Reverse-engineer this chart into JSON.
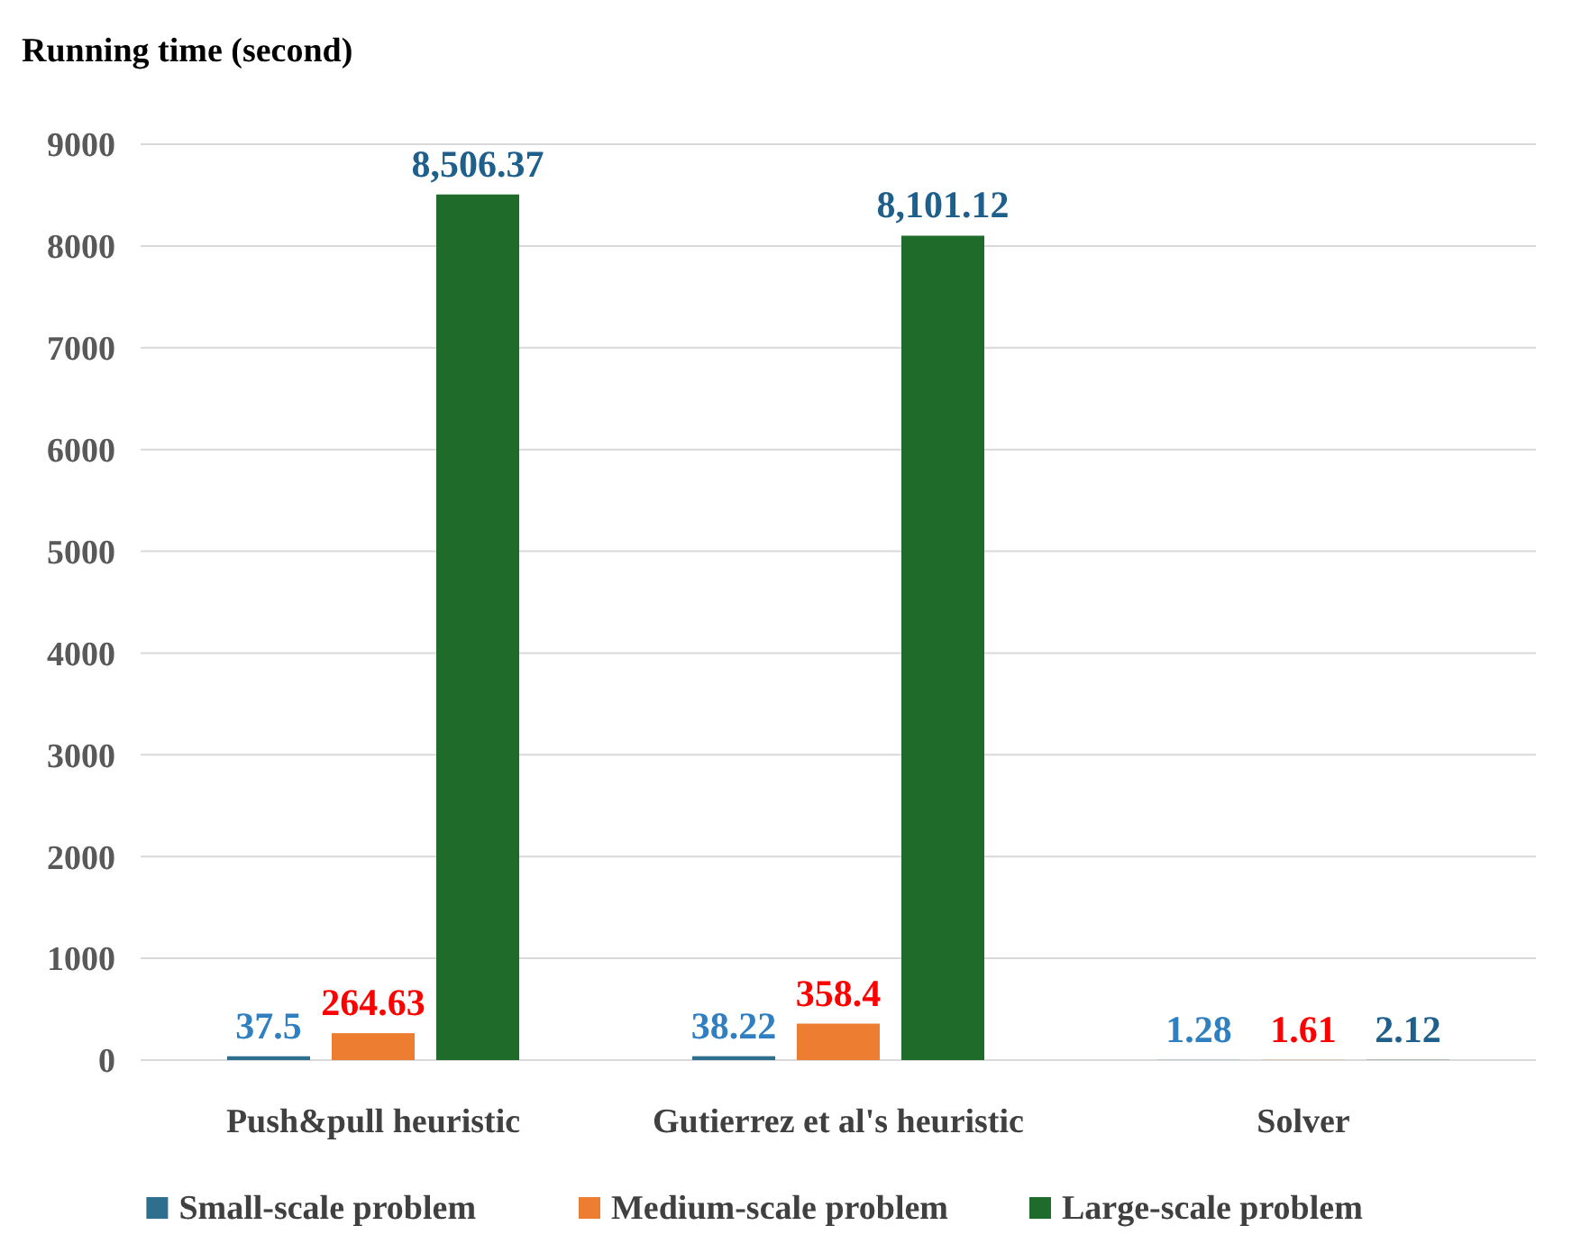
{
  "chart_data": {
    "type": "bar",
    "ylabel": "Running time (second)",
    "categories": [
      "Push&pull heuristic",
      "Gutierrez et al's heuristic",
      "Solver"
    ],
    "series": [
      {
        "name": "Small-scale problem",
        "color": "#2e6e8e",
        "values": [
          37.5,
          38.22,
          1.28
        ],
        "value_labels": [
          "37.5",
          "38.22",
          "1.28"
        ]
      },
      {
        "name": "Medium-scale problem",
        "color": "#ed7d31",
        "values": [
          264.63,
          358.4,
          1.61
        ],
        "value_labels": [
          "264.63",
          "358.4",
          "1.61"
        ]
      },
      {
        "name": "Large-scale problem",
        "color": "#1e6b2a",
        "values": [
          8506.37,
          8101.12,
          2.12
        ],
        "value_labels": [
          "8,506.37",
          "8,101.12",
          "2.12"
        ]
      }
    ],
    "ylim": [
      0,
      9000
    ],
    "yticks": [
      0,
      1000,
      2000,
      3000,
      4000,
      5000,
      6000,
      7000,
      8000,
      9000
    ],
    "grid": "y",
    "legend": "bottom"
  }
}
